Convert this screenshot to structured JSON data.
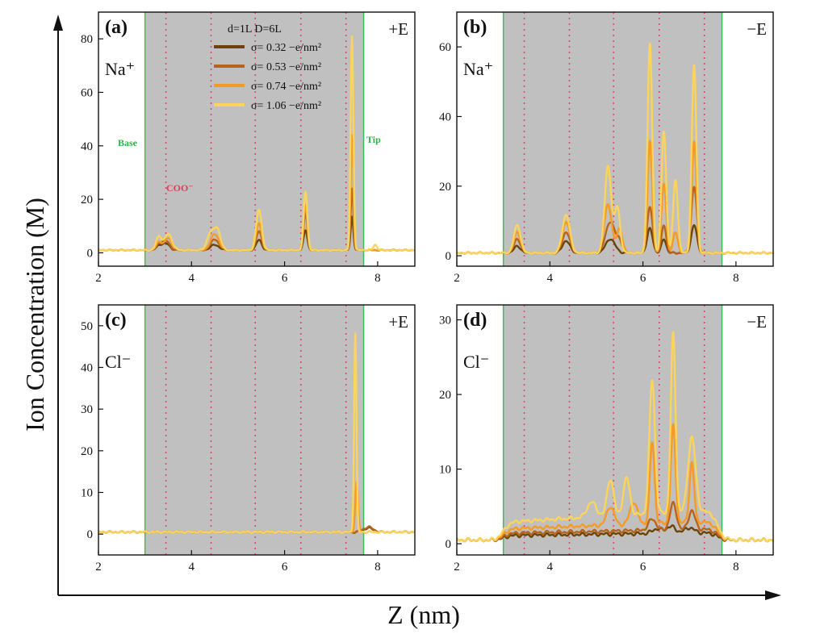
{
  "figure": {
    "y_axis_title": "Ion Concentration (M)",
    "x_axis_title": "Z (nm)",
    "legend_title": "d=1L D=6L",
    "legend_entries": [
      "σ= 0.32 −e/nm²",
      "σ= 0.53 −e/nm²",
      "σ= 0.74 −e/nm²",
      "σ= 1.06 −e/nm²"
    ],
    "series_colors": [
      "#6b4508",
      "#b8641a",
      "#f59a24",
      "#fcd45a"
    ],
    "base_label": "Base",
    "tip_label": "Tip",
    "coo_label": "COO⁻",
    "colors": {
      "shade": "#c0c0c0",
      "boundary": "#3dbb5a",
      "coo_line": "#d94a6a"
    }
  },
  "chart_data": [
    {
      "type": "line",
      "panel": "(a)",
      "ion": "Na⁺",
      "field": "+E",
      "xlim": [
        2,
        8.8
      ],
      "ylim": [
        -5,
        90
      ],
      "xticks": [
        2,
        4,
        6,
        8
      ],
      "yticks": [
        0,
        20,
        40,
        60,
        80
      ],
      "shaded_region": [
        3.0,
        7.7
      ],
      "coo_positions": [
        3.45,
        4.42,
        5.37,
        6.35,
        7.32
      ],
      "series": [
        {
          "name": "σ= 0.32 −e/nm²",
          "baseline": 1,
          "peaks": [
            [
              3.3,
              1.5,
              0.06
            ],
            [
              3.45,
              2.5,
              0.08
            ],
            [
              4.5,
              2,
              0.09
            ],
            [
              5.45,
              3.8,
              0.06
            ],
            [
              6.45,
              7.5,
              0.04
            ],
            [
              7.45,
              12.5,
              0.03
            ]
          ]
        },
        {
          "name": "σ= 0.53 −e/nm²",
          "baseline": 1,
          "peaks": [
            [
              3.3,
              2,
              0.06
            ],
            [
              3.45,
              3.5,
              0.08
            ],
            [
              4.5,
              4,
              0.09
            ],
            [
              5.45,
              7,
              0.06
            ],
            [
              6.45,
              14,
              0.04
            ],
            [
              7.45,
              23,
              0.03
            ]
          ]
        },
        {
          "name": "σ= 0.74 −e/nm²",
          "baseline": 1,
          "peaks": [
            [
              3.3,
              3,
              0.06
            ],
            [
              3.5,
              4.5,
              0.08
            ],
            [
              4.5,
              6,
              0.09
            ],
            [
              5.45,
              10,
              0.06
            ],
            [
              6.45,
              17,
              0.04
            ],
            [
              7.45,
              43,
              0.03
            ]
          ]
        },
        {
          "name": "σ= 1.06 −e/nm²",
          "baseline": 1,
          "peaks": [
            [
              3.3,
              5,
              0.06
            ],
            [
              3.5,
              6,
              0.08
            ],
            [
              4.4,
              6,
              0.07
            ],
            [
              4.55,
              8,
              0.07
            ],
            [
              5.45,
              15,
              0.06
            ],
            [
              6.45,
              22,
              0.04
            ],
            [
              7.45,
              80,
              0.03
            ],
            [
              7.95,
              2,
              0.04
            ]
          ]
        }
      ]
    },
    {
      "type": "line",
      "panel": "(b)",
      "ion": "Na⁺",
      "field": "−E",
      "xlim": [
        2,
        8.8
      ],
      "ylim": [
        -3,
        70
      ],
      "xticks": [
        2,
        4,
        6,
        8
      ],
      "yticks": [
        0,
        20,
        40,
        60
      ],
      "shaded_region": [
        3.0,
        7.7
      ],
      "coo_positions": [
        3.45,
        4.42,
        5.37,
        6.35,
        7.32
      ],
      "series": [
        {
          "name": "σ= 0.32 −e/nm²",
          "baseline": 0.8,
          "peaks": [
            [
              3.3,
              2,
              0.07
            ],
            [
              4.35,
              3.5,
              0.08
            ],
            [
              5.3,
              4,
              0.1
            ],
            [
              6.15,
              7,
              0.06
            ],
            [
              6.45,
              4,
              0.05
            ],
            [
              7.1,
              8,
              0.06
            ]
          ]
        },
        {
          "name": "σ= 0.53 −e/nm²",
          "baseline": 0.8,
          "peaks": [
            [
              3.3,
              4,
              0.07
            ],
            [
              4.35,
              6,
              0.08
            ],
            [
              5.3,
              9,
              0.1
            ],
            [
              5.5,
              3,
              0.06
            ],
            [
              6.15,
              13,
              0.06
            ],
            [
              6.45,
              8,
              0.05
            ],
            [
              7.1,
              19,
              0.06
            ]
          ]
        },
        {
          "name": "σ= 0.74 −e/nm²",
          "baseline": 0.8,
          "peaks": [
            [
              3.3,
              6,
              0.07
            ],
            [
              4.35,
              9,
              0.08
            ],
            [
              5.25,
              14,
              0.08
            ],
            [
              5.5,
              7,
              0.06
            ],
            [
              6.15,
              32,
              0.05
            ],
            [
              6.45,
              20,
              0.05
            ],
            [
              6.7,
              6,
              0.05
            ],
            [
              7.1,
              32,
              0.05
            ]
          ]
        },
        {
          "name": "σ= 1.06 −e/nm²",
          "baseline": 0.8,
          "peaks": [
            [
              3.3,
              8,
              0.07
            ],
            [
              4.35,
              11,
              0.08
            ],
            [
              5.25,
              25,
              0.07
            ],
            [
              5.45,
              13,
              0.06
            ],
            [
              6.15,
              60,
              0.05
            ],
            [
              6.45,
              35,
              0.05
            ],
            [
              6.7,
              21,
              0.05
            ],
            [
              7.1,
              54,
              0.05
            ]
          ]
        }
      ]
    },
    {
      "type": "line",
      "panel": "(c)",
      "ion": "Cl⁻",
      "field": "+E",
      "xlim": [
        2,
        8.8
      ],
      "ylim": [
        -5,
        55
      ],
      "xticks": [
        2,
        4,
        6,
        8
      ],
      "yticks": [
        0,
        10,
        20,
        30,
        40,
        50
      ],
      "shaded_region": [
        3.0,
        7.7
      ],
      "coo_positions": [
        3.45,
        4.42,
        5.37,
        6.35,
        7.32
      ],
      "series": [
        {
          "name": "σ= 0.32 −e/nm²",
          "baseline": 0.5,
          "peaks": [
            [
              7.8,
              1,
              0.1
            ]
          ]
        },
        {
          "name": "σ= 0.53 −e/nm²",
          "baseline": 0.5,
          "peaks": [
            [
              7.8,
              1.2,
              0.1
            ]
          ]
        },
        {
          "name": "σ= 0.74 −e/nm²",
          "baseline": 0.5,
          "peaks": [
            [
              7.55,
              12,
              0.03
            ]
          ]
        },
        {
          "name": "σ= 1.06 −e/nm²",
          "baseline": 0.5,
          "peaks": [
            [
              7.52,
              48,
              0.025
            ]
          ]
        }
      ]
    },
    {
      "type": "line",
      "panel": "(d)",
      "ion": "Cl⁻",
      "field": "−E",
      "xlim": [
        2,
        8.8
      ],
      "ylim": [
        -1.5,
        32
      ],
      "xticks": [
        2,
        4,
        6,
        8
      ],
      "yticks": [
        0,
        10,
        20,
        30
      ],
      "shaded_region": [
        3.0,
        7.7
      ],
      "coo_positions": [
        3.45,
        4.42,
        5.37,
        6.35,
        7.32
      ],
      "series": [
        {
          "name": "σ= 0.32 −e/nm²",
          "baseline": 0.5,
          "plateau": [
            3.0,
            7.6,
            1.0
          ],
          "peaks": [
            [
              6.3,
              0.6,
              0.1
            ],
            [
              6.6,
              0.9,
              0.1
            ],
            [
              7.0,
              0.7,
              0.1
            ]
          ]
        },
        {
          "name": "σ= 0.53 −e/nm²",
          "baseline": 0.5,
          "plateau": [
            3.0,
            7.6,
            1.5
          ],
          "peaks": [
            [
              6.2,
              1.5,
              0.08
            ],
            [
              6.65,
              3.5,
              0.07
            ],
            [
              7.05,
              2.5,
              0.07
            ]
          ]
        },
        {
          "name": "σ= 0.74 −e/nm²",
          "baseline": 0.5,
          "plateau": [
            3.0,
            7.6,
            2.5
          ],
          "peaks": [
            [
              5.3,
              2.5,
              0.08
            ],
            [
              5.8,
              3,
              0.08
            ],
            [
              6.2,
              11,
              0.05
            ],
            [
              6.65,
              13,
              0.05
            ],
            [
              7.05,
              8,
              0.05
            ]
          ]
        },
        {
          "name": "σ= 1.06 −e/nm²",
          "baseline": 0.5,
          "plateau": [
            3.0,
            7.6,
            4
          ],
          "peaks": [
            [
              4.9,
              2,
              0.1
            ],
            [
              5.3,
              5,
              0.07
            ],
            [
              5.65,
              5,
              0.07
            ],
            [
              6.2,
              18,
              0.06
            ],
            [
              6.65,
              24,
              0.05
            ],
            [
              7.05,
              10,
              0.08
            ]
          ]
        }
      ]
    }
  ]
}
